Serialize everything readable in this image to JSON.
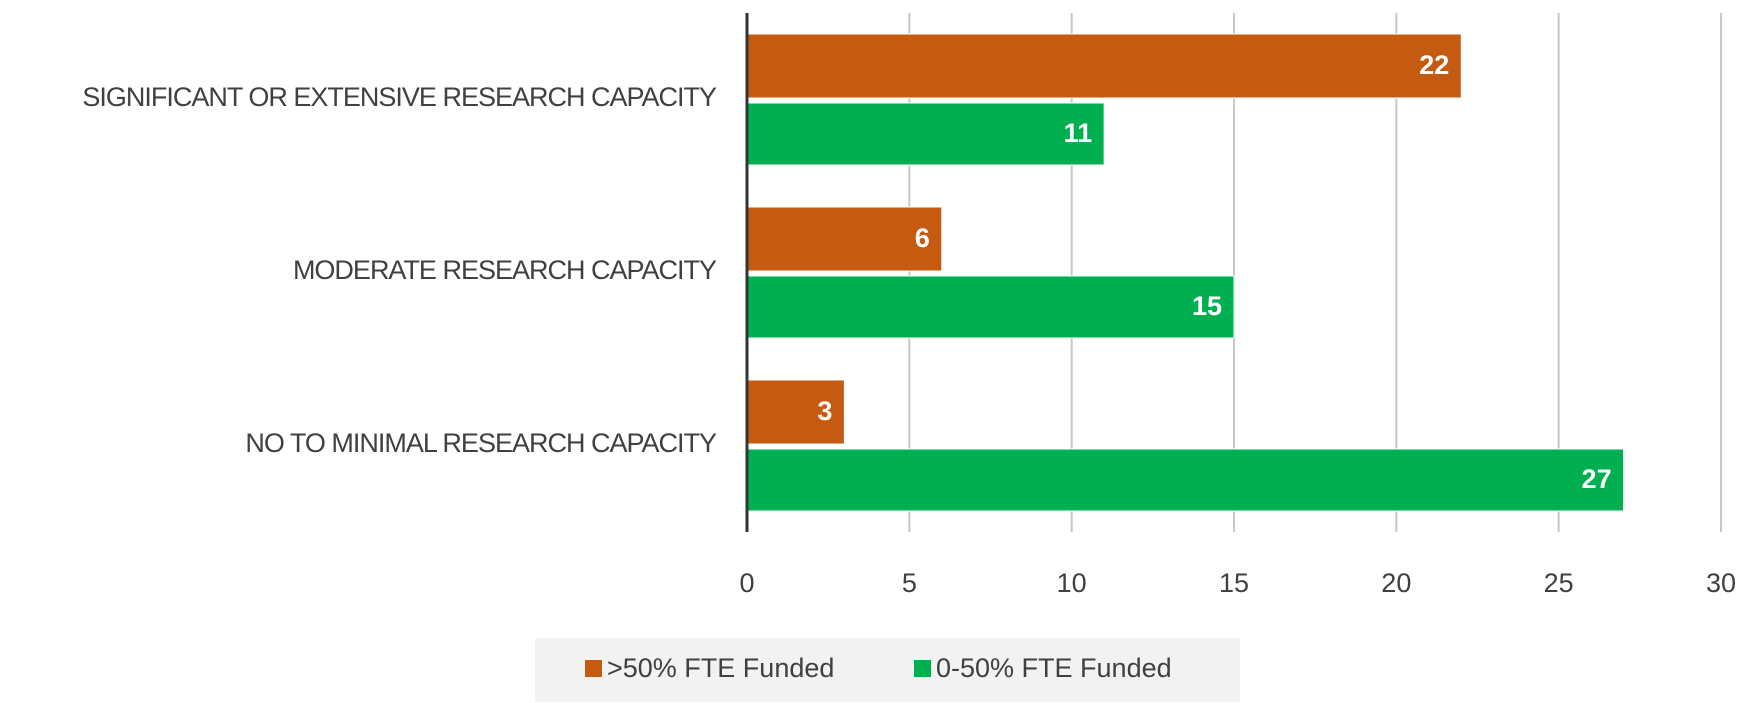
{
  "chart_data": {
    "type": "hbar",
    "categories": [
      "SIGNIFICANT OR EXTENSIVE RESEARCH CAPACITY",
      "MODERATE RESEARCH CAPACITY",
      "NO TO MINIMAL RESEARCH CAPACITY"
    ],
    "series": [
      {
        "name": ">50% FTE Funded",
        "color": "#c55a11",
        "values": [
          22,
          6,
          3
        ]
      },
      {
        "name": "0-50% FTE Funded",
        "color": "#00b050",
        "values": [
          11,
          15,
          27
        ]
      }
    ],
    "xlim": [
      0,
      30
    ],
    "xticks": [
      0,
      5,
      10,
      15,
      20,
      25,
      30
    ],
    "grid": true,
    "legend": "bottom"
  }
}
